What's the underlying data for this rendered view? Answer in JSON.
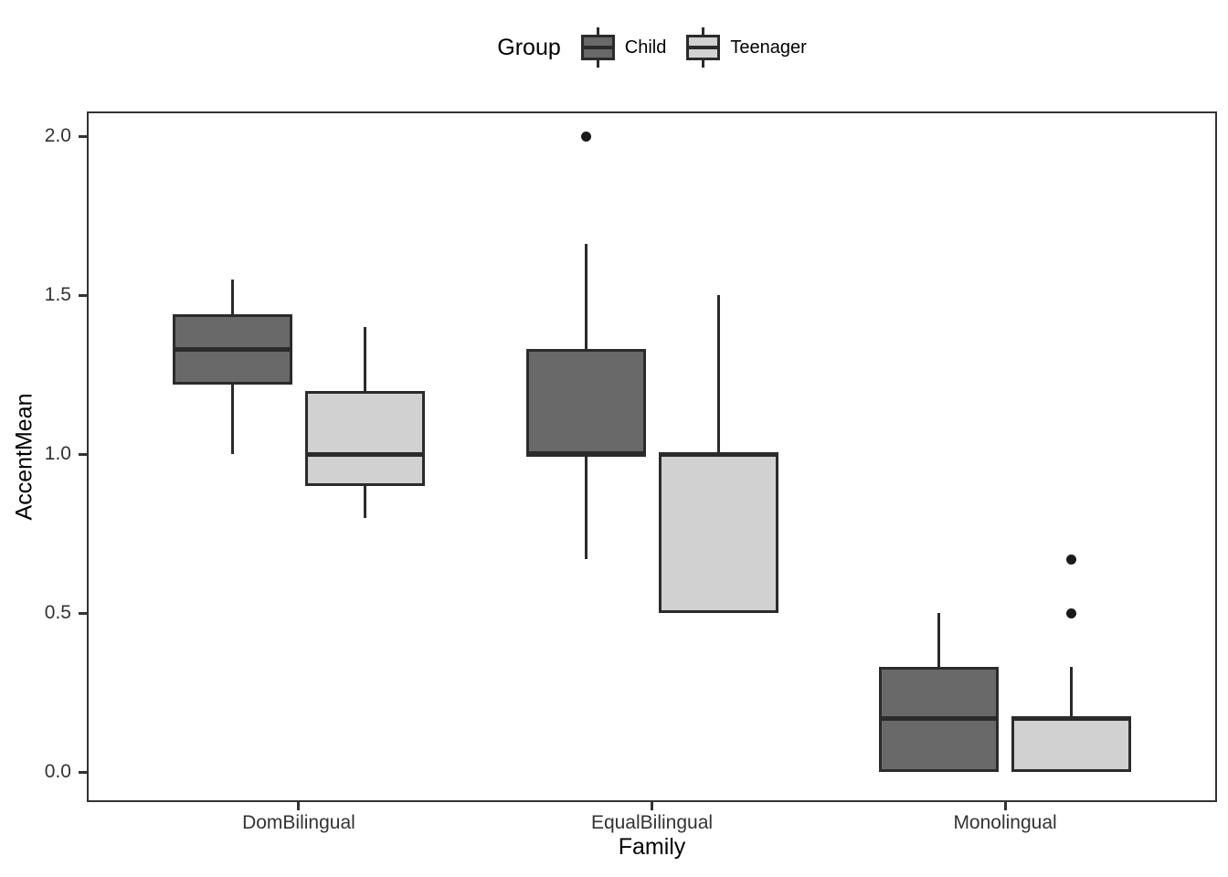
{
  "chart_data": {
    "type": "boxplot",
    "xlabel": "Family",
    "ylabel": "AccentMean",
    "categories": [
      "DomBilingual",
      "EqualBilingual",
      "Monolingual"
    ],
    "yticks": [
      0.0,
      0.5,
      1.0,
      1.5,
      2.0
    ],
    "ytick_labels": [
      "0.0",
      "0.5",
      "1.0",
      "1.5",
      "2.0"
    ],
    "yminor": [
      0.25,
      0.75,
      1.25,
      1.75
    ],
    "ylim": [
      -0.094,
      2.078
    ],
    "grid": "major and minor horizontal gridlines, vertical gridline at each category center",
    "legend": {
      "title": "Group",
      "position": "top-center",
      "entries": [
        {
          "label": "Child",
          "fill": "#696969"
        },
        {
          "label": "Teenager",
          "fill": "#d1d1d1"
        }
      ]
    },
    "series": [
      {
        "name": "Child",
        "fill": "#696969",
        "stroke": "#2b2b2b",
        "boxes": [
          {
            "category": "DomBilingual",
            "lower_whisker": 1.0,
            "q1": 1.22,
            "median": 1.33,
            "q3": 1.44,
            "upper_whisker": 1.55,
            "outliers": []
          },
          {
            "category": "EqualBilingual",
            "lower_whisker": 0.67,
            "q1": 1.0,
            "median": 1.0,
            "q3": 1.33,
            "upper_whisker": 1.66,
            "outliers": [
              2.0
            ]
          },
          {
            "category": "Monolingual",
            "lower_whisker": 0.0,
            "q1": 0.0,
            "median": 0.17,
            "q3": 0.33,
            "upper_whisker": 0.5,
            "outliers": []
          }
        ]
      },
      {
        "name": "Teenager",
        "fill": "#d1d1d1",
        "stroke": "#2b2b2b",
        "boxes": [
          {
            "category": "DomBilingual",
            "lower_whisker": 0.8,
            "q1": 0.9,
            "median": 1.0,
            "q3": 1.2,
            "upper_whisker": 1.4,
            "outliers": []
          },
          {
            "category": "EqualBilingual",
            "lower_whisker": 0.5,
            "q1": 0.5,
            "median": 1.0,
            "q3": 1.0,
            "upper_whisker": 1.5,
            "outliers": []
          },
          {
            "category": "Monolingual",
            "lower_whisker": 0.0,
            "q1": 0.0,
            "median": 0.17,
            "q3": 0.17,
            "upper_whisker": 0.33,
            "outliers": [
              0.5,
              0.67
            ]
          }
        ]
      }
    ],
    "colors": {
      "grid_major": "#e4e4e4",
      "grid_minor": "#f1f1f1",
      "panel_border": "#333333",
      "box_stroke": "#2b2b2b",
      "outlier": "#1a1a1a",
      "tick_label": "#333333",
      "axis_title": "#000000"
    }
  }
}
